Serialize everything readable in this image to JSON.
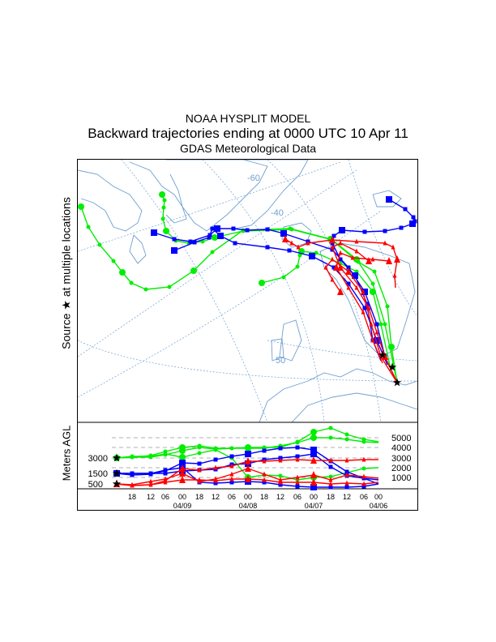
{
  "header": {
    "model": "NOAA HYSPLIT MODEL",
    "title": "Backward trajectories ending at 0000 UTC 10 Apr 11",
    "subtitle": "GDAS Meteorological Data"
  },
  "map": {
    "side_label": "Source ★ at multiple locations",
    "grid_labels": [
      "-60",
      "-40",
      "50"
    ],
    "colors": {
      "coast": "#6f9fcf",
      "grid": "#6f9fcf",
      "green": "#00ee00",
      "blue": "#0000ff",
      "red": "#ff0000"
    }
  },
  "profile": {
    "side_label": "Meters AGL",
    "start_heights": [
      "3000",
      "1500",
      "500"
    ],
    "right_axis": [
      "5000",
      "4000",
      "3000",
      "2000",
      "1000"
    ],
    "time_ticks": [
      "18",
      "12",
      "06",
      "00",
      "18",
      "12",
      "06",
      "00",
      "18",
      "12",
      "06",
      "00",
      "18",
      "12",
      "06",
      "00"
    ],
    "dates": [
      "04/09",
      "04/08",
      "04/07",
      "04/06"
    ]
  }
}
